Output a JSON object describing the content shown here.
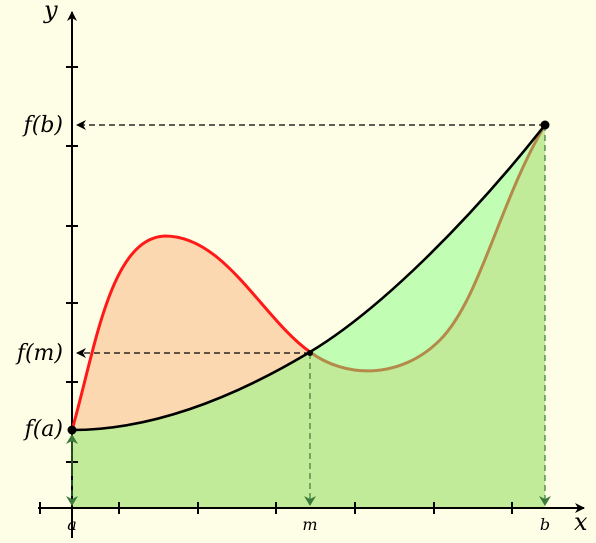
{
  "axes": {
    "x_label": "x",
    "y_label": "y"
  },
  "x_ticks": {
    "a": "a",
    "m": "m",
    "b": "b"
  },
  "y_ticks": {
    "fa": "f(a)",
    "fm": "f(m)",
    "fb": "f(b)"
  },
  "colors": {
    "background": "#fefee6",
    "under_curve_fill": "#c1eb99",
    "left_region_fill": "#fcd8b0",
    "right_region_fill": "#c1fdb3",
    "red_curve": "#ff1a1a",
    "brown_curve": "#b38a4a",
    "main_curve": "#000000",
    "drop_arrows": "#3c7a3c"
  }
}
